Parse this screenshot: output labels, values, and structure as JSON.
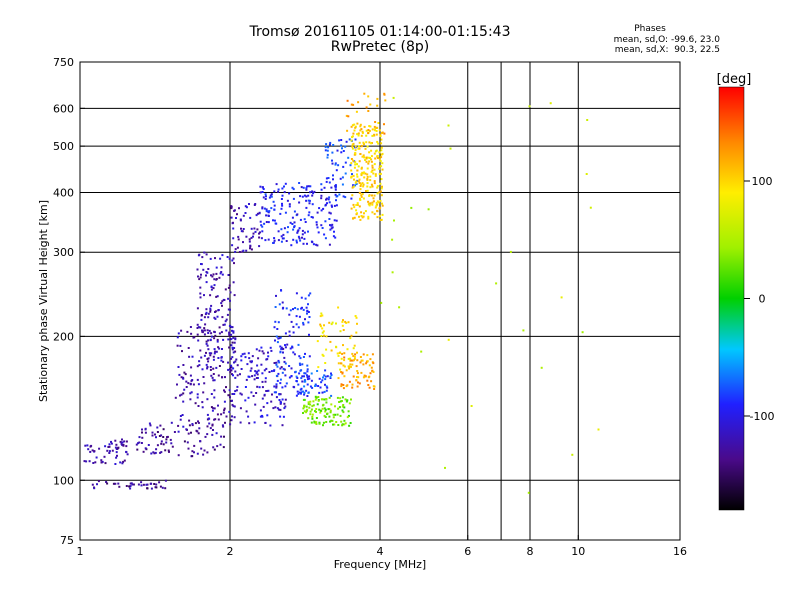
{
  "title_line1": "Tromsø 20161105 01:14:00-01:15:43",
  "title_line2": "RwPretec (8p)",
  "stats": {
    "heading": "Phases",
    "line1": "mean, sd,O: -99.6, 23.0",
    "line2": "mean, sd,X:  90.3, 22.5"
  },
  "colorbar": {
    "label": "[deg]",
    "ticks": [
      "100",
      "0",
      "-100"
    ]
  },
  "colors": {
    "frame": "#000000",
    "grid": "#000000"
  },
  "chart_data": {
    "type": "scatter",
    "xlabel": "Frequency [MHz]",
    "ylabel": "Stationary phase Virtual Height [km]",
    "xscale": "log",
    "yscale": "log",
    "xlim": [
      1,
      16
    ],
    "ylim": [
      75,
      750
    ],
    "x_ticks": [
      1,
      2,
      4,
      6,
      8,
      10,
      16
    ],
    "x_tick_labels": [
      "1",
      "2",
      "4",
      "6",
      "8",
      "10",
      "16"
    ],
    "x_grid": [
      2,
      4,
      6,
      7,
      8,
      10
    ],
    "y_ticks": [
      75,
      100,
      200,
      300,
      400,
      500,
      600,
      750
    ],
    "y_tick_labels": [
      "75",
      "100",
      "200",
      "300",
      "400",
      "500",
      "600",
      "750"
    ],
    "y_grid": [
      100,
      200,
      300,
      400,
      500,
      600
    ],
    "phase_range_deg": [
      -180,
      180
    ],
    "clusters": [
      {
        "x": [
          1.02,
          1.25
        ],
        "y": [
          108,
          122
        ],
        "phase": -125,
        "n": 60
      },
      {
        "x": [
          1.06,
          1.5
        ],
        "y": [
          96,
          100
        ],
        "phase": -130,
        "n": 40
      },
      {
        "x": [
          1.3,
          1.95
        ],
        "y": [
          112,
          132
        ],
        "phase": -130,
        "n": 90
      },
      {
        "x": [
          1.55,
          2.05
        ],
        "y": [
          125,
          210
        ],
        "phase": -125,
        "n": 180
      },
      {
        "x": [
          1.72,
          2.05
        ],
        "y": [
          170,
          300
        ],
        "phase": -122,
        "n": 140
      },
      {
        "x": [
          2.0,
          2.6
        ],
        "y": [
          130,
          190
        ],
        "phase": -110,
        "n": 140
      },
      {
        "x": [
          2.0,
          2.3
        ],
        "y": [
          300,
          380
        ],
        "phase": -120,
        "n": 60
      },
      {
        "x": [
          2.3,
          3.3
        ],
        "y": [
          310,
          420
        ],
        "phase": -95,
        "n": 200
      },
      {
        "x": [
          2.45,
          2.9
        ],
        "y": [
          150,
          250
        ],
        "phase": -90,
        "n": 120
      },
      {
        "x": [
          2.7,
          3.2
        ],
        "y": [
          150,
          170
        ],
        "phase": -80,
        "n": 60
      },
      {
        "x": [
          2.8,
          3.5
        ],
        "y": [
          130,
          150
        ],
        "phase": 30,
        "n": 120
      },
      {
        "x": [
          3.0,
          3.6
        ],
        "y": [
          170,
          230
        ],
        "phase": 95,
        "n": 60
      },
      {
        "x": [
          3.3,
          3.9
        ],
        "y": [
          155,
          185
        ],
        "phase": 120,
        "n": 80
      },
      {
        "x": [
          3.1,
          3.6
        ],
        "y": [
          380,
          520
        ],
        "phase": -85,
        "n": 60
      },
      {
        "x": [
          3.5,
          4.05
        ],
        "y": [
          350,
          560
        ],
        "phase": 100,
        "n": 250
      },
      {
        "x": [
          3.4,
          4.1
        ],
        "y": [
          520,
          650
        ],
        "phase": 120,
        "n": 30
      },
      {
        "x": [
          4.0,
          12.0
        ],
        "y": [
          80,
          650
        ],
        "phase": 60,
        "n": 28
      }
    ]
  }
}
